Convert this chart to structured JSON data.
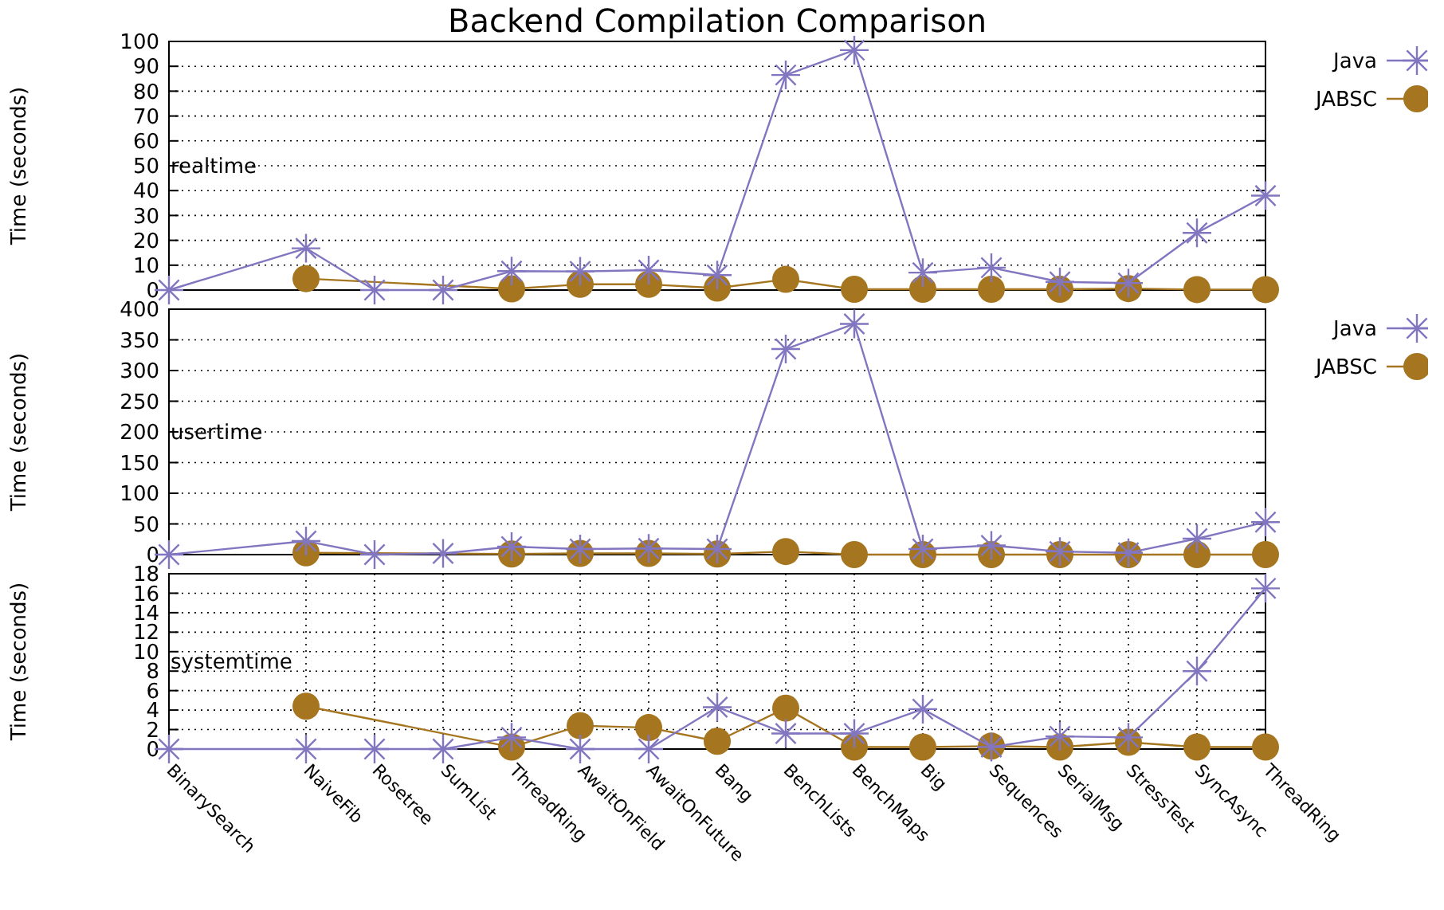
{
  "chart_data": [
    {
      "type": "line",
      "title": "Backend Compilation Comparison",
      "ylabel": "Time (seconds)",
      "annotations": [
        "realtime"
      ],
      "categories": [
        null,
        null,
        null,
        null,
        null,
        null,
        null,
        null,
        null,
        null,
        null,
        null,
        null,
        null,
        null,
        null,
        null
      ],
      "ylim": [
        0,
        100
      ],
      "yticks": [
        0,
        10,
        20,
        30,
        40,
        50,
        60,
        70,
        80,
        90,
        100
      ],
      "grid": "y",
      "legend": "top right",
      "tick_labels": "y",
      "series": [
        {
          "name": "Java",
          "color": "#8276c0",
          "marker": "cross",
          "values": [
            0,
            null,
            16.8,
            0,
            0,
            7.6,
            7.5,
            8,
            6,
            86.5,
            96.5,
            7,
            9,
            3.3,
            2.8,
            23,
            38
          ]
        },
        {
          "name": "JABSC",
          "color": "#a5761f",
          "marker": "circle",
          "values": [
            null,
            null,
            4.6,
            null,
            null,
            0.5,
            2.3,
            2.3,
            0.8,
            4.3,
            0.3,
            0.3,
            0.3,
            0.3,
            0.6,
            0.2,
            0.2
          ]
        }
      ]
    },
    {
      "type": "line",
      "ylabel": "Time (seconds)",
      "annotations": [
        "usertime"
      ],
      "categories": [
        null,
        null,
        null,
        null,
        null,
        null,
        null,
        null,
        null,
        null,
        null,
        null,
        null,
        null,
        null,
        null,
        null
      ],
      "ylim": [
        0,
        400
      ],
      "yticks": [
        0,
        50,
        100,
        150,
        200,
        250,
        300,
        350,
        400
      ],
      "grid": "y",
      "legend": "top right",
      "tick_labels": "y",
      "series": [
        {
          "name": "Java",
          "color": "#8276c0",
          "marker": "cross",
          "values": [
            0,
            null,
            22,
            0,
            2,
            13,
            9,
            10,
            9,
            335,
            376,
            9,
            15,
            5,
            3,
            26,
            53
          ]
        },
        {
          "name": "JABSC",
          "color": "#a5761f",
          "marker": "circle",
          "values": [
            null,
            null,
            3,
            null,
            null,
            1,
            2,
            2,
            1,
            5,
            0,
            0,
            0,
            0,
            0,
            0,
            0
          ]
        }
      ]
    },
    {
      "type": "line",
      "ylabel": "Time (seconds)",
      "annotations": [
        "systemtime"
      ],
      "categories": [
        "BinarySearch",
        null,
        "NaiveFib",
        "Rosetree",
        "SumList",
        "ThreadRing",
        "AwaitOnField",
        "AwaitOnFuture",
        "Bang",
        "BenchLists",
        "BenchMaps",
        "Big",
        "Sequences",
        "SerialMsg",
        "StressTest",
        "SyncAsync",
        "ThreadRing"
      ],
      "ylim": [
        0,
        18
      ],
      "yticks": [
        0,
        2,
        4,
        6,
        8,
        10,
        12,
        14,
        16,
        18
      ],
      "grid": true,
      "legend": false,
      "series": [
        {
          "color": "#8276c0",
          "marker": "cross",
          "values": [
            0,
            null,
            0,
            0,
            0,
            1.2,
            0,
            0,
            4.3,
            1.6,
            1.6,
            4.1,
            0.2,
            1.3,
            1.2,
            8,
            16.5
          ]
        },
        {
          "color": "#a5761f",
          "marker": "circle",
          "values": [
            null,
            null,
            4.4,
            null,
            null,
            0.2,
            2.4,
            2.2,
            0.8,
            4.2,
            0.2,
            0.2,
            0.3,
            0.2,
            0.7,
            0.2,
            0.2
          ]
        }
      ]
    }
  ]
}
